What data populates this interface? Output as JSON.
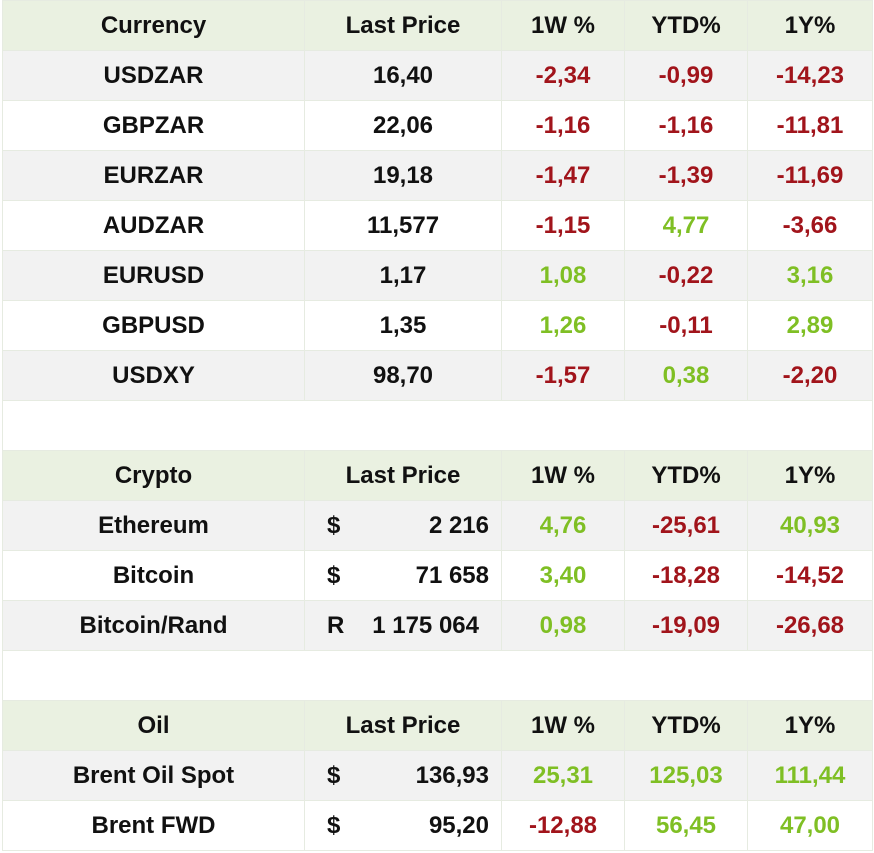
{
  "currency": {
    "headers": [
      "Currency",
      "Last Price",
      "1W %",
      "YTD%",
      "1Y%"
    ],
    "rows": [
      {
        "name": "USDZAR",
        "price": "16,40",
        "w": "-2,34",
        "ytd": "-0,99",
        "y": "-14,23",
        "w_sign": "neg",
        "ytd_sign": "neg",
        "y_sign": "neg"
      },
      {
        "name": "GBPZAR",
        "price": "22,06",
        "w": "-1,16",
        "ytd": "-1,16",
        "y": "-11,81",
        "w_sign": "neg",
        "ytd_sign": "neg",
        "y_sign": "neg"
      },
      {
        "name": "EURZAR",
        "price": "19,18",
        "w": "-1,47",
        "ytd": "-1,39",
        "y": "-11,69",
        "w_sign": "neg",
        "ytd_sign": "neg",
        "y_sign": "neg"
      },
      {
        "name": "AUDZAR",
        "price": "11,577",
        "w": "-1,15",
        "ytd": "4,77",
        "y": "-3,66",
        "w_sign": "neg",
        "ytd_sign": "pos",
        "y_sign": "neg"
      },
      {
        "name": "EURUSD",
        "price": "1,17",
        "w": "1,08",
        "ytd": "-0,22",
        "y": "3,16",
        "w_sign": "pos",
        "ytd_sign": "neg",
        "y_sign": "pos"
      },
      {
        "name": "GBPUSD",
        "price": "1,35",
        "w": "1,26",
        "ytd": "-0,11",
        "y": "2,89",
        "w_sign": "pos",
        "ytd_sign": "neg",
        "y_sign": "pos"
      },
      {
        "name": "USDXY",
        "price": "98,70",
        "w": "-1,57",
        "ytd": "0,38",
        "y": "-2,20",
        "w_sign": "neg",
        "ytd_sign": "pos",
        "y_sign": "neg"
      }
    ]
  },
  "crypto": {
    "headers": [
      "Crypto",
      "Last Price",
      "1W %",
      "YTD%",
      "1Y%"
    ],
    "rows": [
      {
        "name": "Ethereum",
        "cur": "$",
        "price": "2 216",
        "w": "4,76",
        "ytd": "-25,61",
        "y": "40,93",
        "w_sign": "pos",
        "ytd_sign": "neg",
        "y_sign": "pos"
      },
      {
        "name": "Bitcoin",
        "cur": "$",
        "price": "71 658",
        "w": "3,40",
        "ytd": "-18,28",
        "y": "-14,52",
        "w_sign": "pos",
        "ytd_sign": "neg",
        "y_sign": "neg"
      },
      {
        "name": "Bitcoin/Rand",
        "cur": "R",
        "price": "1 175 064",
        "w": "0,98",
        "ytd": "-19,09",
        "y": "-26,68",
        "w_sign": "pos",
        "ytd_sign": "neg",
        "y_sign": "neg"
      }
    ]
  },
  "oil": {
    "headers": [
      "Oil",
      "Last Price",
      "1W %",
      "YTD%",
      "1Y%"
    ],
    "rows": [
      {
        "name": "Brent Oil Spot",
        "cur": "$",
        "price": "136,93",
        "w": "25,31",
        "ytd": "125,03",
        "y": "111,44",
        "w_sign": "pos",
        "ytd_sign": "pos",
        "y_sign": "pos"
      },
      {
        "name": "Brent FWD",
        "cur": "$",
        "price": "95,20",
        "w": "-12,88",
        "ytd": "56,45",
        "y": "47,00",
        "w_sign": "neg",
        "ytd_sign": "pos",
        "y_sign": "pos"
      }
    ]
  },
  "colors": {
    "negative": "#a1141b",
    "positive": "#7fbf24",
    "header_bg": "#eaf1e1",
    "alt_row_bg": "#f2f2f2"
  }
}
